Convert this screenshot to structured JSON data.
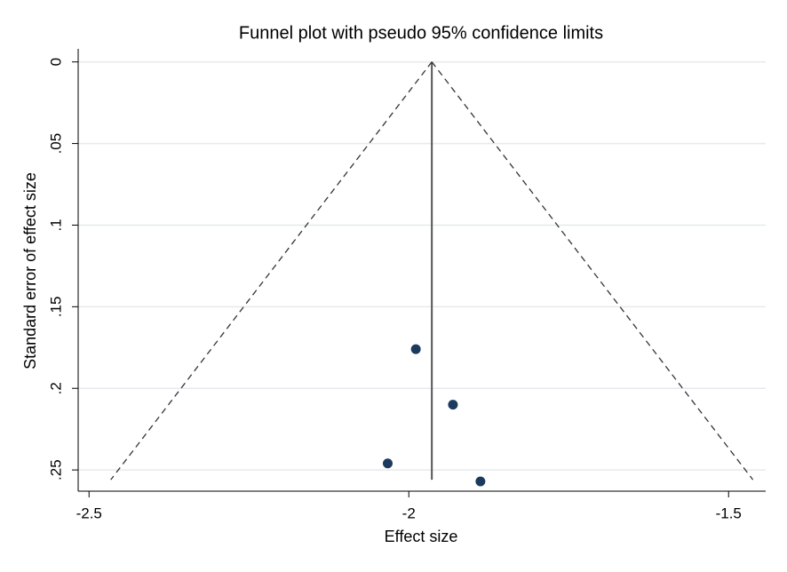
{
  "chart_data": {
    "type": "scatter",
    "title": "Funnel plot with pseudo 95% confidence limits",
    "x_label": "Effect size",
    "y_label": "Standard error of effect size",
    "xlim": [
      -2.517,
      -1.442
    ],
    "ylim": [
      0.263,
      -0.008
    ],
    "xticks": [
      -2.5,
      -2,
      -1.5
    ],
    "yticks": [
      0,
      {
        "value": 0.05,
        "label": ".05"
      },
      {
        "value": 0.1,
        "label": ".1"
      },
      {
        "value": 0.15,
        "label": ".15"
      },
      {
        "value": 0.2,
        "label": ".2"
      },
      {
        "value": 0.25,
        "label": ".25"
      }
    ],
    "grid": true,
    "series": [
      {
        "color": "#1b3a5e",
        "x": [
          -1.989,
          -1.931,
          -2.033,
          -1.888
        ],
        "values": [
          0.176,
          0.21,
          0.246,
          0.257
        ]
      }
    ],
    "lines": [
      {
        "style": "solid",
        "color": "#555555",
        "x": [
          -1.964,
          -1.964
        ],
        "values": [
          0,
          0.256
        ]
      },
      {
        "style": "dashed",
        "color": "#333333",
        "x": [
          -1.964,
          -2.466
        ],
        "values": [
          0,
          0.256
        ]
      },
      {
        "style": "dashed",
        "color": "#333333",
        "x": [
          -1.964,
          -1.462
        ],
        "values": [
          0,
          0.256
        ]
      }
    ]
  }
}
